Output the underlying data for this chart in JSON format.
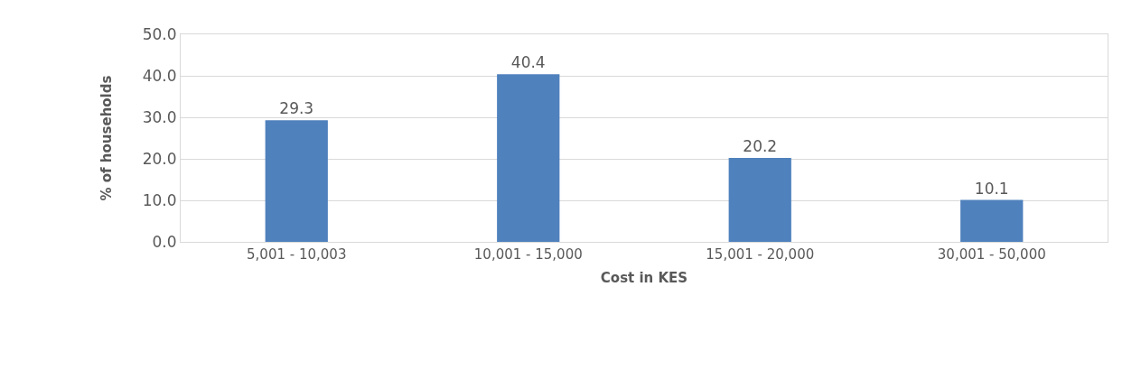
{
  "chart_data": {
    "type": "bar",
    "xlabel": "Cost in KES",
    "ylabel": "% of households",
    "categories": [
      "5,001 - 10,003",
      "10,001 - 15,000",
      "15,001 - 20,000",
      "30,001 - 50,000"
    ],
    "values": [
      29.3,
      40.4,
      20.2,
      10.1
    ],
    "color": "#4f81bd",
    "ylim": [
      0,
      50
    ],
    "yticks": [
      {
        "value": 0,
        "label": "0.0"
      },
      {
        "value": 10,
        "label": "10.0"
      },
      {
        "value": 20,
        "label": "20.0"
      },
      {
        "value": 30,
        "label": "30.0"
      },
      {
        "value": 40,
        "label": "40.0"
      },
      {
        "value": 50,
        "label": "50.0"
      }
    ],
    "grid": "y",
    "data_labels": true,
    "legend": false
  }
}
